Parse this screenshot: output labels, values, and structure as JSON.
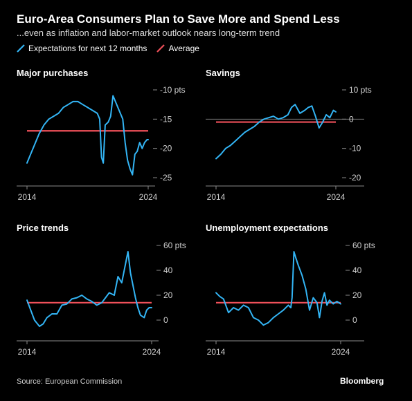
{
  "title": "Euro-Area Consumers Plan to Save More and Spend Less",
  "subtitle": "...even as inflation and labor-market outlook nears long-term trend",
  "legend": {
    "expectations": "Expectations for next 12 months",
    "average": "Average"
  },
  "colors": {
    "expectations": "#33b5f5",
    "average": "#f0505a",
    "axis": "#8a8a8a",
    "zero": "#7a7a7a"
  },
  "source": "Source: European Commission",
  "brand": "Bloomberg",
  "chart_data": [
    {
      "type": "line",
      "title": "Major purchases",
      "ylim": [
        -25,
        -10
      ],
      "yticks": [
        -10,
        -15,
        -20,
        -25
      ],
      "ytick_labels": [
        "-10 pts",
        "-15",
        "-20",
        "-25"
      ],
      "xlim": [
        2014,
        2024
      ],
      "xticks": [
        2014,
        2024
      ],
      "average": -17,
      "series": [
        {
          "x": [
            2014,
            2014.3,
            2014.6,
            2015,
            2015.4,
            2015.8,
            2016.2,
            2016.6,
            2017,
            2017.4,
            2017.8,
            2018.2,
            2018.6,
            2019,
            2019.4,
            2019.8,
            2020,
            2020.15,
            2020.3,
            2020.45,
            2020.7,
            2020.9,
            2021.1,
            2021.3,
            2021.6,
            2021.9,
            2022.1,
            2022.3,
            2022.5,
            2022.7,
            2022.9,
            2023.1,
            2023.3,
            2023.5,
            2023.7,
            2023.9,
            2024
          ],
          "y": [
            -22.5,
            -21,
            -19.5,
            -17.5,
            -16,
            -15,
            -14.5,
            -14,
            -13,
            -12.5,
            -12,
            -12,
            -12.5,
            -13,
            -13.5,
            -14,
            -15,
            -21.5,
            -22.5,
            -16,
            -15.5,
            -14.5,
            -11,
            -12,
            -13.5,
            -15,
            -19,
            -22,
            -23.5,
            -24.5,
            -21,
            -20.5,
            -19,
            -20,
            -19,
            -18.5,
            -18.5
          ]
        }
      ]
    },
    {
      "type": "line",
      "title": "Savings",
      "ylim": [
        -20,
        10
      ],
      "yticks": [
        10,
        0,
        -10,
        -20
      ],
      "ytick_labels": [
        "10 pts",
        "0",
        "-10",
        "-20"
      ],
      "zero_line": true,
      "xlim": [
        2014,
        2024
      ],
      "xticks": [
        2014,
        2024
      ],
      "average": -1,
      "series": [
        {
          "x": [
            2014,
            2014.4,
            2014.8,
            2015.2,
            2015.6,
            2016,
            2016.4,
            2016.8,
            2017.2,
            2017.6,
            2018,
            2018.4,
            2018.8,
            2019.2,
            2019.6,
            2020,
            2020.3,
            2020.6,
            2021,
            2021.4,
            2021.7,
            2022,
            2022.3,
            2022.6,
            2022.9,
            2023.2,
            2023.5,
            2023.8,
            2024
          ],
          "y": [
            -13.5,
            -12,
            -10,
            -9,
            -7.5,
            -6,
            -4.5,
            -3.5,
            -2.5,
            -1,
            0,
            0.5,
            1,
            0,
            0.5,
            1.5,
            4,
            5,
            2,
            3,
            4,
            4.5,
            1,
            -3,
            -1,
            1.5,
            0.5,
            3,
            2.5
          ]
        }
      ]
    },
    {
      "type": "line",
      "title": "Price trends",
      "ylim": [
        -10,
        60
      ],
      "yticks": [
        60,
        40,
        20,
        0
      ],
      "ytick_labels": [
        "60 pts",
        "40",
        "20",
        "0"
      ],
      "xlim": [
        2014,
        2024
      ],
      "xticks": [
        2014,
        2024
      ],
      "average": 14,
      "series": [
        {
          "x": [
            2014,
            2014.3,
            2014.6,
            2015,
            2015.3,
            2015.6,
            2016,
            2016.4,
            2016.8,
            2017.2,
            2017.6,
            2018,
            2018.4,
            2018.8,
            2019.2,
            2019.6,
            2020,
            2020.3,
            2020.6,
            2021,
            2021.3,
            2021.6,
            2021.9,
            2022.1,
            2022.3,
            2022.5,
            2022.7,
            2022.9,
            2023.1,
            2023.4,
            2023.6,
            2023.8,
            2024
          ],
          "y": [
            16,
            8,
            0,
            -5,
            -3,
            2,
            5,
            5,
            12,
            13,
            17,
            18,
            20,
            17,
            15,
            12,
            14,
            18,
            22,
            20,
            35,
            30,
            45,
            55,
            38,
            28,
            18,
            10,
            4,
            2,
            8,
            10,
            10
          ]
        }
      ]
    },
    {
      "type": "line",
      "title": "Unemployment expectations",
      "ylim": [
        -10,
        60
      ],
      "yticks": [
        60,
        40,
        20,
        0
      ],
      "ytick_labels": [
        "60 pts",
        "40",
        "20",
        "0"
      ],
      "xlim": [
        2014,
        2024
      ],
      "xticks": [
        2014,
        2024
      ],
      "average": 14,
      "series": [
        {
          "x": [
            2014,
            2014.3,
            2014.6,
            2015,
            2015.4,
            2015.8,
            2016.2,
            2016.6,
            2017,
            2017.4,
            2017.8,
            2018.2,
            2018.6,
            2019,
            2019.4,
            2019.8,
            2020,
            2020.1,
            2020.25,
            2020.4,
            2020.6,
            2020.9,
            2021.2,
            2021.5,
            2021.8,
            2022.1,
            2022.3,
            2022.5,
            2022.7,
            2022.9,
            2023.1,
            2023.4,
            2023.7,
            2024
          ],
          "y": [
            22,
            19,
            17,
            6,
            10,
            8,
            12,
            10,
            2,
            0,
            -4,
            -2,
            2,
            5,
            8,
            12,
            10,
            18,
            55,
            50,
            44,
            36,
            25,
            8,
            18,
            14,
            2,
            15,
            22,
            12,
            16,
            13,
            15,
            13
          ]
        }
      ]
    }
  ]
}
